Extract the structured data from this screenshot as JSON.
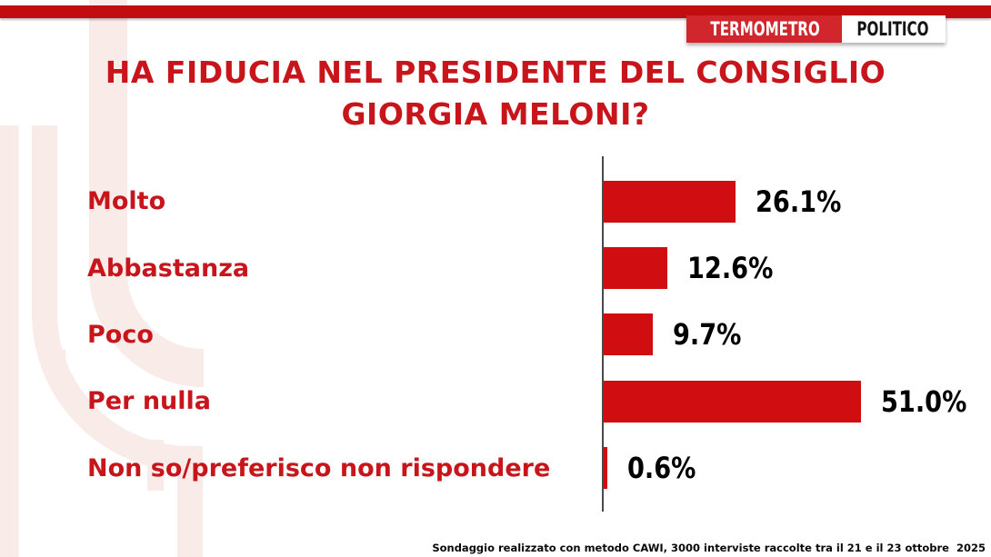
{
  "page": {
    "background_color": "#ffffff",
    "top_strip_color": "#c10d10",
    "watermark_color": "#f8ebe8"
  },
  "logo": {
    "part1": "TERMOMETRO",
    "part2": "POLITICO",
    "part1_bg": "#d2262d",
    "part1_color": "#ffffff",
    "part2_bg": "#ffffff",
    "part2_color": "#141414"
  },
  "title": {
    "line1": "HA FIDUCIA NEL PRESIDENTE DEL CONSIGLIO",
    "line2": "GIORGIA MELONI?",
    "color": "#c8151b"
  },
  "chart_data": {
    "type": "bar",
    "orientation": "horizontal",
    "title": "HA FIDUCIA NEL PRESIDENTE DEL CONSIGLIO GIORGIA MELONI?",
    "categories": [
      "Molto",
      "Abbastanza",
      "Poco",
      "Per nulla",
      "Non so/preferisco non rispondere"
    ],
    "values": [
      26.1,
      12.6,
      9.7,
      51.0,
      0.6
    ],
    "value_labels": [
      "26.1%",
      "12.6%",
      "9.7%",
      "51.0%",
      "0.6%"
    ],
    "xlim": [
      0,
      55
    ],
    "grid": false,
    "legend": false,
    "bar_color": "#d00e11",
    "category_label_color": "#c8151b",
    "value_label_color": "#000000",
    "axis_line_color": "#4a4a4a"
  },
  "footer": {
    "source": "Sondaggio realizzato con metodo CAWI, 3000 interviste raccolte tra il 21 e il 23 ottobre  2025"
  }
}
